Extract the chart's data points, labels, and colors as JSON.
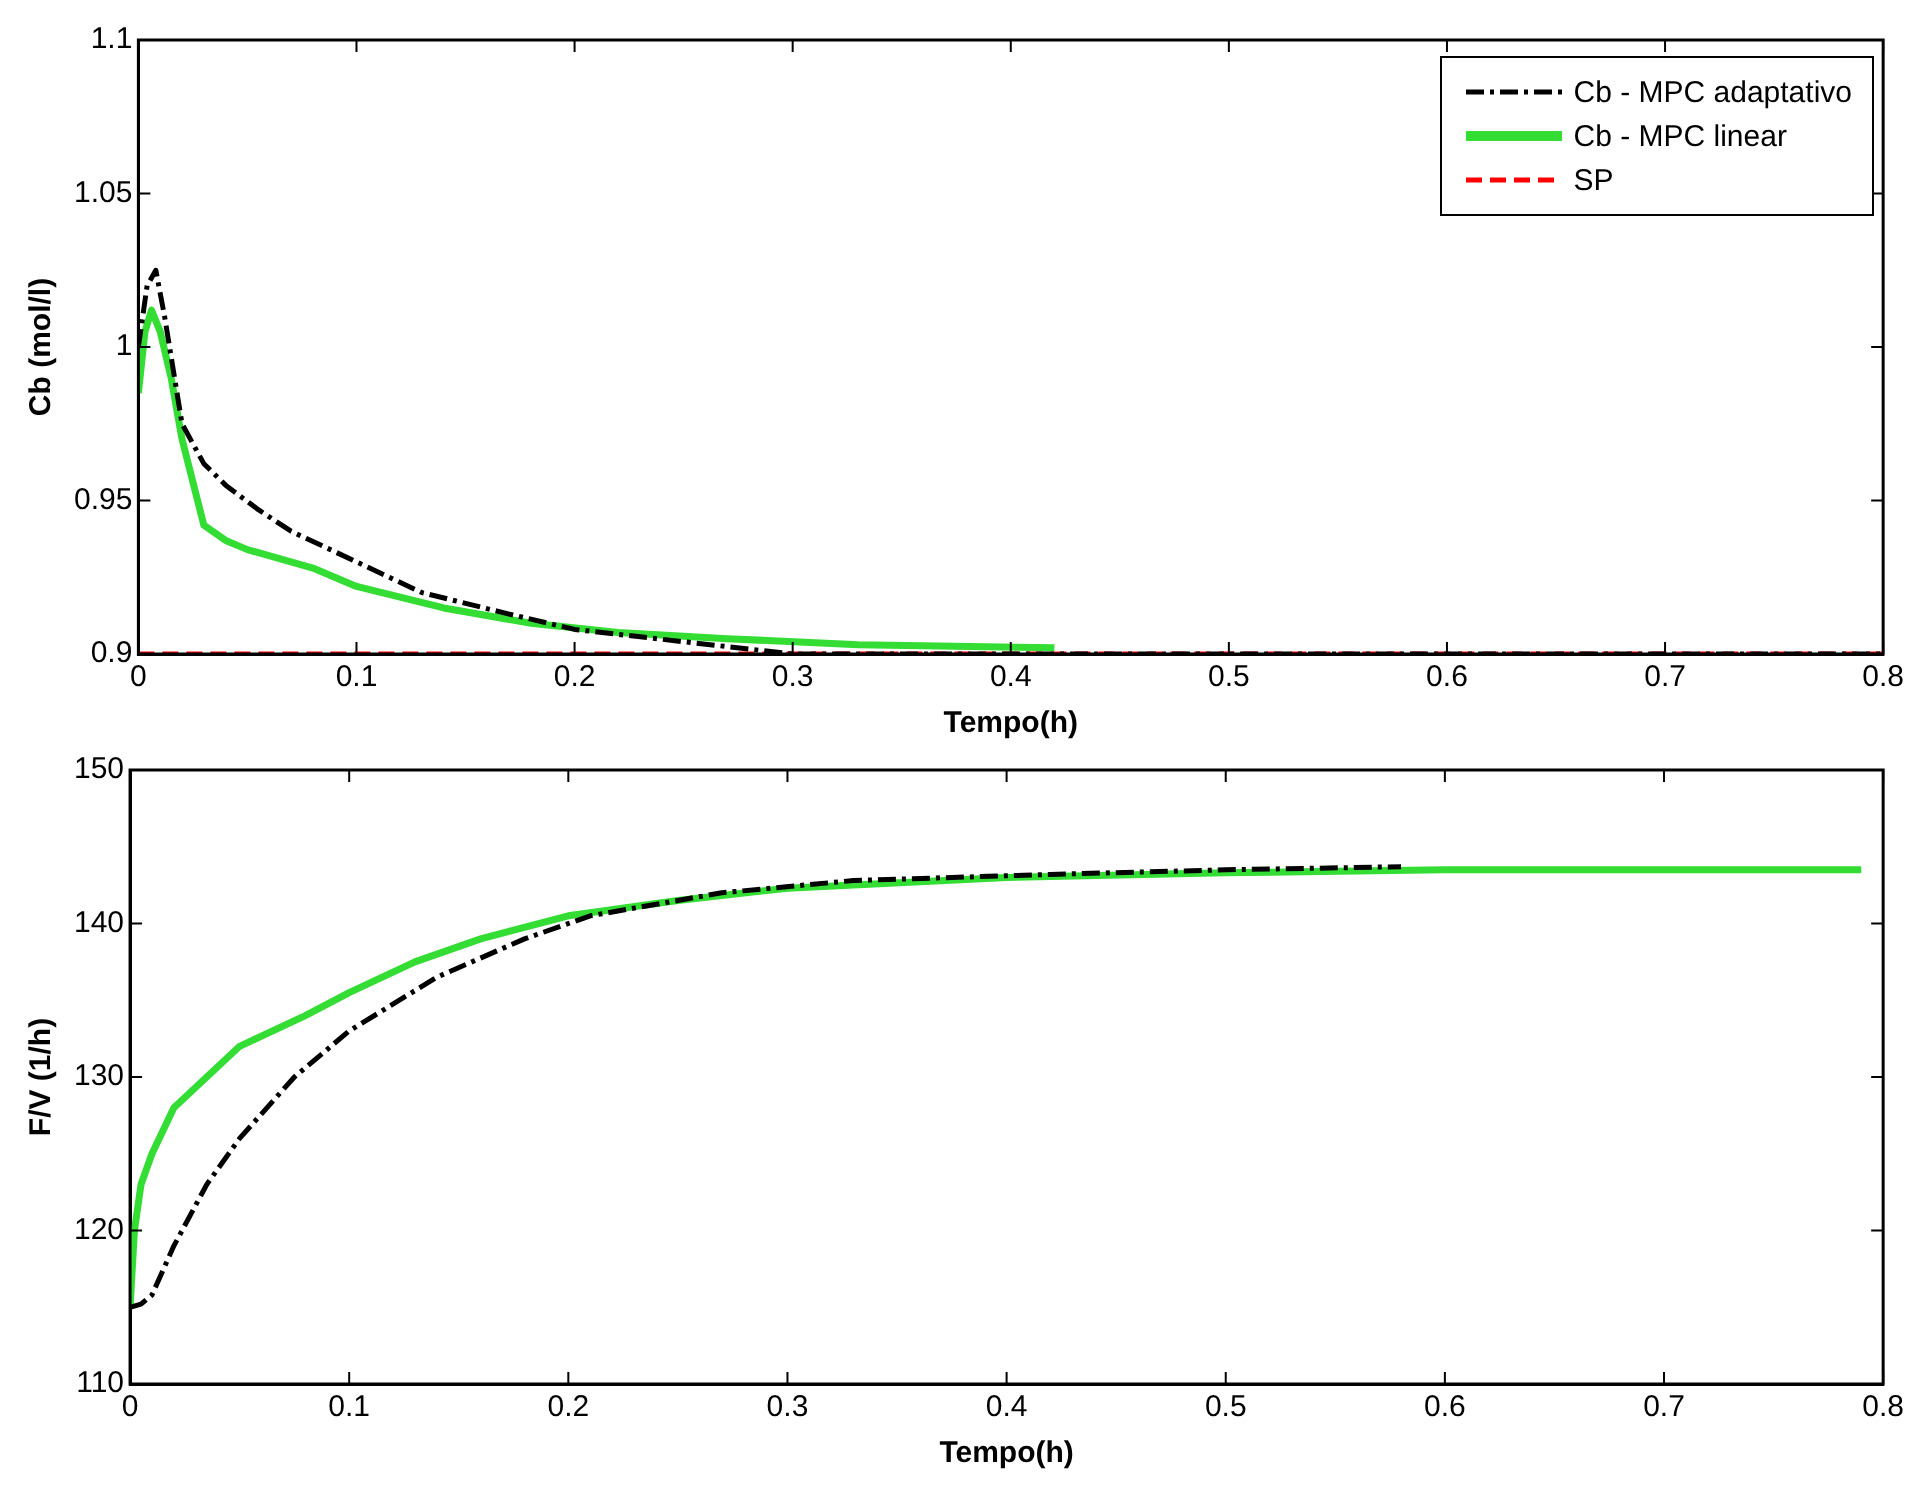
{
  "chart_data": [
    {
      "type": "line",
      "xlabel": "Tempo(h)",
      "ylabel": "Cb (mol/l)",
      "xlim": [
        0,
        0.8
      ],
      "xticks": [
        0,
        0.1,
        0.2,
        0.3,
        0.4,
        0.5,
        0.6,
        0.7,
        0.8
      ],
      "ylim": [
        0.9,
        1.1
      ],
      "yticks": [
        0.9,
        0.95,
        1,
        1.05,
        1.1
      ],
      "grid": false,
      "legend": "top right",
      "series": [
        {
          "name": "Cb - MPC adaptativo",
          "color": "#000000",
          "line_style": "dashdot",
          "x": [
            0,
            0.004,
            0.008,
            0.012,
            0.02,
            0.03,
            0.04,
            0.055,
            0.07,
            0.1,
            0.13,
            0.17,
            0.2,
            0.25,
            0.3,
            0.4,
            0.5,
            0.6,
            0.7,
            0.8
          ],
          "values": [
            1.0,
            1.02,
            1.025,
            1.01,
            0.975,
            0.962,
            0.955,
            0.947,
            0.94,
            0.93,
            0.92,
            0.913,
            0.908,
            0.904,
            0.9,
            0.9,
            0.9,
            0.9,
            0.9,
            0.9
          ]
        },
        {
          "name": "Cb - MPC linear",
          "color": "#33dd33",
          "line_style": "solid",
          "x": [
            0,
            0.003,
            0.006,
            0.01,
            0.015,
            0.02,
            0.03,
            0.04,
            0.05,
            0.08,
            0.1,
            0.14,
            0.18,
            0.22,
            0.27,
            0.33,
            0.42
          ],
          "values": [
            0.985,
            1.005,
            1.012,
            1.005,
            0.99,
            0.97,
            0.942,
            0.937,
            0.934,
            0.928,
            0.922,
            0.915,
            0.91,
            0.907,
            0.905,
            0.903,
            0.902
          ]
        },
        {
          "name": "SP",
          "color": "#ff0000",
          "line_style": "dashed",
          "x": [
            0,
            0.8
          ],
          "values": [
            0.9,
            0.9
          ]
        }
      ]
    },
    {
      "type": "line",
      "xlabel": "Tempo(h)",
      "ylabel": "F/V (1/h)",
      "xlim": [
        0,
        0.8
      ],
      "xticks": [
        0,
        0.1,
        0.2,
        0.3,
        0.4,
        0.5,
        0.6,
        0.7,
        0.8
      ],
      "ylim": [
        110,
        150
      ],
      "yticks": [
        110,
        120,
        130,
        140,
        150
      ],
      "grid": false,
      "legend": false,
      "series": [
        {
          "color": "#000000",
          "line_style": "dashdot",
          "x": [
            0,
            0.005,
            0.01,
            0.02,
            0.035,
            0.05,
            0.075,
            0.1,
            0.14,
            0.18,
            0.21,
            0.27,
            0.33,
            0.42,
            0.5,
            0.58
          ],
          "values": [
            115,
            115.2,
            115.8,
            119,
            123,
            126,
            130,
            133,
            136.5,
            139,
            140.5,
            142,
            142.8,
            143.2,
            143.5,
            143.7
          ]
        },
        {
          "color": "#33dd33",
          "line_style": "solid",
          "x": [
            0,
            0.002,
            0.005,
            0.01,
            0.02,
            0.035,
            0.05,
            0.08,
            0.1,
            0.13,
            0.16,
            0.2,
            0.25,
            0.3,
            0.4,
            0.5,
            0.6,
            0.7,
            0.79
          ],
          "values": [
            115,
            120,
            123,
            125,
            128,
            130,
            132,
            134,
            135.5,
            137.5,
            139,
            140.5,
            141.5,
            142.3,
            143,
            143.3,
            143.5,
            143.5,
            143.5
          ]
        }
      ]
    }
  ]
}
